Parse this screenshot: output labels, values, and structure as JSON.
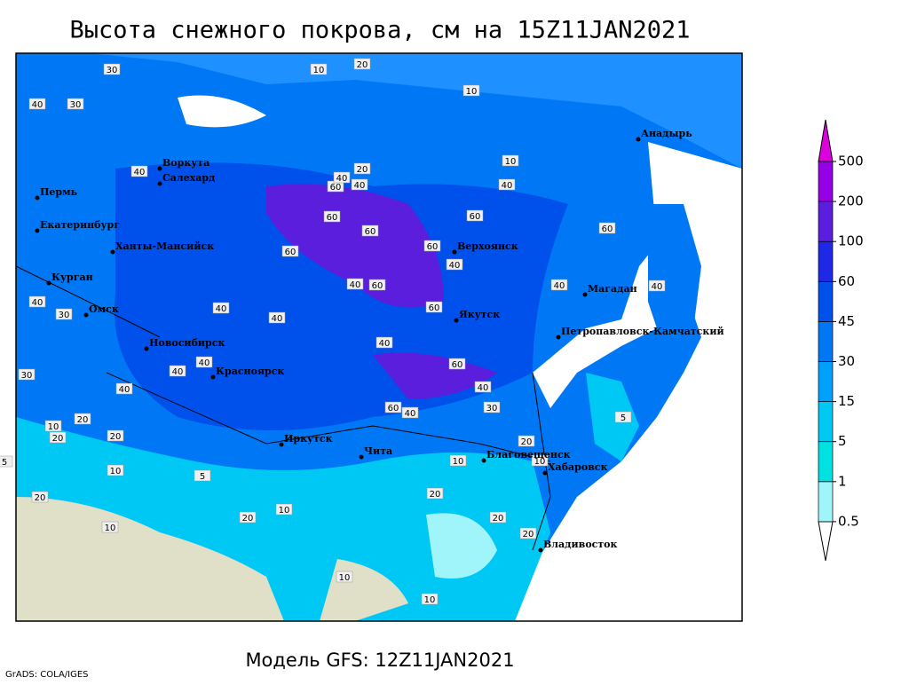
{
  "title": "Высота снежного покрова, см на 15Z11JAN2021",
  "model": "Модель GFS: 12Z11JAN2021",
  "credit": "GrADS: COLA/IGES",
  "colorbar": {
    "levels": [
      0.5,
      1,
      5,
      15,
      30,
      45,
      60,
      100,
      200,
      500
    ],
    "colors": [
      "#ffffff",
      "#a0f5fa",
      "#00e1e1",
      "#00c8f5",
      "#00a0ff",
      "#0078f5",
      "#0050eb",
      "#1e28e6",
      "#5a1edc",
      "#9600e6",
      "#dc00dc"
    ]
  },
  "cities": [
    "Воркута",
    "Салехард",
    "Пермь",
    "Екатеринбург",
    "Ханты-Мансийск",
    "Курган",
    "Омск",
    "Новосибирск",
    "Красноярск",
    "Иркутск",
    "Чита",
    "Благовещенск",
    "Хабаровск",
    "Владивосток",
    "Якутск",
    "Верхоянск",
    "Магадан",
    "Петропавловск-Камчатский",
    "Анадырь"
  ],
  "contour_labels": [
    30,
    40,
    30,
    10,
    20,
    10,
    20,
    60,
    40,
    60,
    60,
    60,
    60,
    60,
    40,
    40,
    60,
    60,
    60,
    40,
    40,
    40,
    30,
    40,
    40,
    30,
    40,
    40,
    40,
    40,
    40,
    20,
    20,
    60,
    40,
    10,
    20,
    10,
    20,
    10,
    10,
    20,
    20,
    5,
    5,
    10,
    10,
    20,
    20,
    10,
    10,
    40,
    20,
    40,
    30,
    60,
    40,
    10,
    5
  ]
}
